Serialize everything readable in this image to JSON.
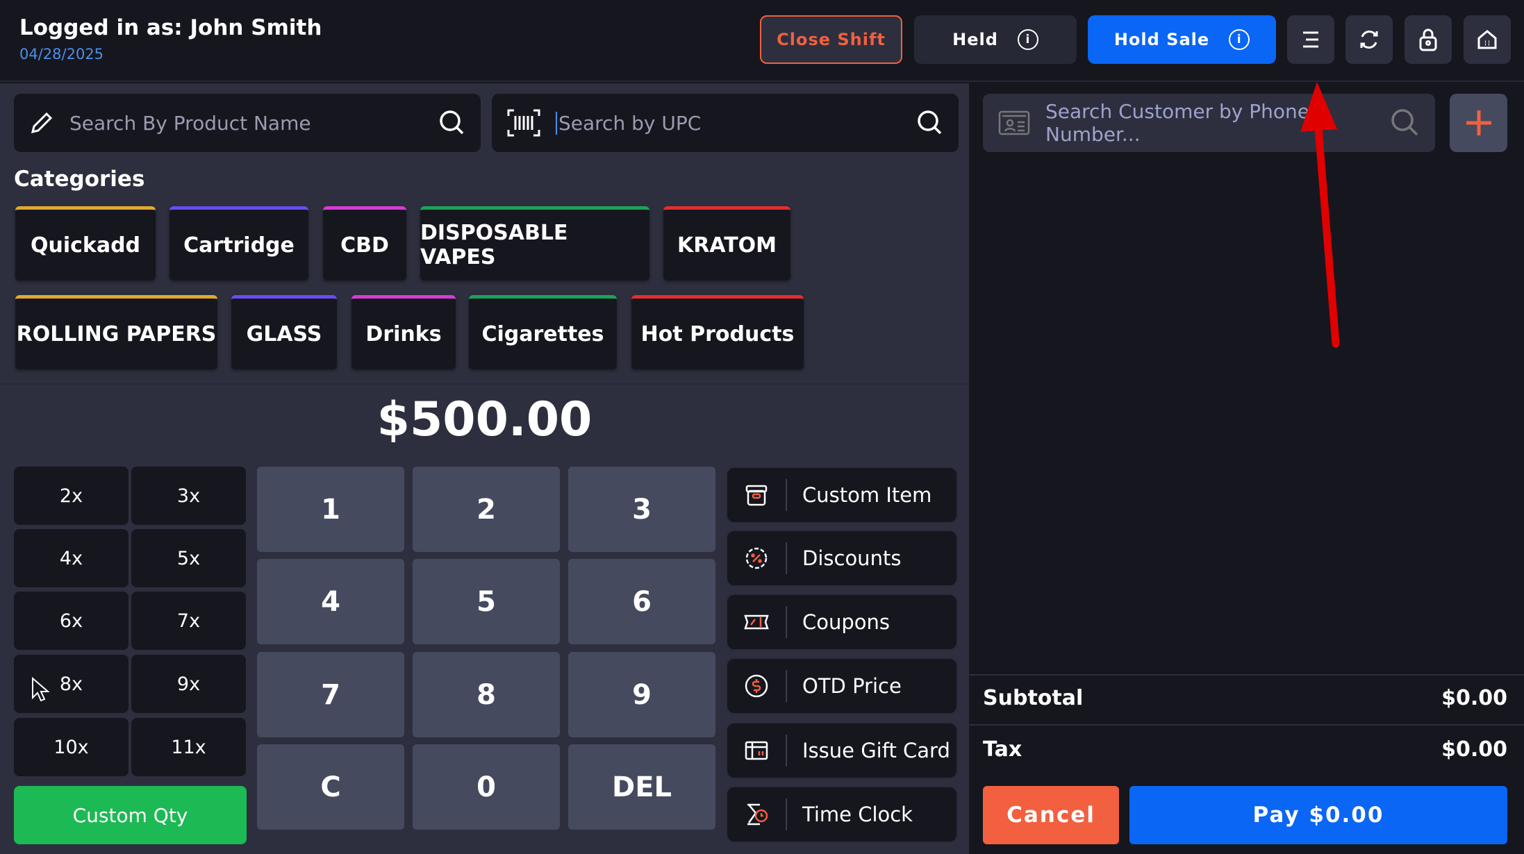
{
  "header": {
    "user": "Logged in as: John Smith",
    "date": "04/28/2025",
    "close_shift": "Close Shift",
    "held": "Held",
    "hold_sale": "Hold Sale",
    "icons": [
      "menu-icon",
      "refresh-icon",
      "lock-icon",
      "home-icon"
    ]
  },
  "search": {
    "product_placeholder": "Search By Product Name",
    "upc_placeholder": "Search by UPC",
    "customer_placeholder": "Search Customer by Phone Number..."
  },
  "categories": {
    "title": "Categories",
    "items": [
      {
        "label": "Quickadd",
        "color": "#e0a830"
      },
      {
        "label": "Cartridge",
        "color": "#6a4cf0"
      },
      {
        "label": "CBD",
        "color": "#d63bd6"
      },
      {
        "label": "DISPOSABLE VAPES",
        "color": "#1aa35a"
      },
      {
        "label": "KRATOM",
        "color": "#e52d2d"
      },
      {
        "label": "ROLLING PAPERS",
        "color": "#e0a830"
      },
      {
        "label": "GLASS",
        "color": "#6a4cf0"
      },
      {
        "label": "Drinks",
        "color": "#d63bd6"
      },
      {
        "label": "Cigarettes",
        "color": "#1aa35a"
      },
      {
        "label": "Hot Products",
        "color": "#e52d2d"
      }
    ]
  },
  "amount": "$500.00",
  "multipliers": [
    "2x",
    "3x",
    "4x",
    "5x",
    "6x",
    "7x",
    "8x",
    "9x",
    "10x",
    "11x"
  ],
  "custom_qty": "Custom Qty",
  "keypad": [
    "1",
    "2",
    "3",
    "4",
    "5",
    "6",
    "7",
    "8",
    "9",
    "C",
    "0",
    "DEL"
  ],
  "actions": [
    {
      "label": "Custom Item",
      "icon": "box-icon"
    },
    {
      "label": "Discounts",
      "icon": "discount-badge-icon"
    },
    {
      "label": "Coupons",
      "icon": "coupon-icon"
    },
    {
      "label": "OTD Price",
      "icon": "dollar-circle-icon"
    },
    {
      "label": "Issue Gift Card",
      "icon": "gift-card-icon"
    },
    {
      "label": "Time Clock",
      "icon": "time-clock-icon"
    }
  ],
  "totals": {
    "subtotal_label": "Subtotal",
    "subtotal": "$0.00",
    "tax_label": "Tax",
    "tax": "$0.00"
  },
  "cancel": "Cancel",
  "pay": "Pay $0.00",
  "colors": {
    "accent_blue": "#0a66f5",
    "accent_orange": "#f2603f",
    "green": "#1db954",
    "annotation_arrow": "#e00000"
  }
}
